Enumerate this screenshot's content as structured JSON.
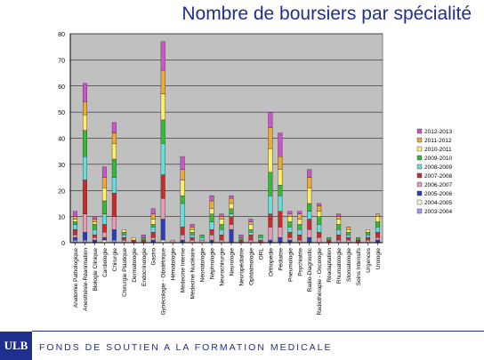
{
  "header": {
    "title": "Nombre de boursiers par spécialité"
  },
  "footer": {
    "logo": "ULB",
    "text": "FONDS DE SOUTIEN A LA FORMATION MEDICALE"
  },
  "chart_data": {
    "type": "bar",
    "stacked": true,
    "ylim": [
      0,
      80
    ],
    "yticks": [
      0,
      10,
      20,
      30,
      40,
      50,
      60,
      70,
      80
    ],
    "grid": true,
    "legend_position": "right",
    "categories": [
      "Anatomie Pathologique",
      "Anesthésie-Réanimation",
      "Biologie Clinique",
      "Cardiologie",
      "Chirurgie",
      "Chirurgie Plastique",
      "Dermatologie",
      "Endocrinologie",
      "Gastro",
      "Gynécologie - Obstétrique",
      "Hématologie",
      "Médecine Interne",
      "Médecine Nucléaire",
      "Néonatologie",
      "Néphrologie",
      "Neurochirurgie",
      "Neurologie",
      "Neuropédiatrie",
      "Ophtalmologie",
      "ORL",
      "Orthopédie",
      "Pédiatrie",
      "Pneumologie",
      "Psychiatrie",
      "Radio-Diagnostic",
      "Radiothérapie - Oncologie",
      "Réadaptation",
      "Rhumatologie",
      "Stomatologie",
      "Soins Intensifs",
      "Urgences",
      "Urologie"
    ],
    "series": [
      {
        "name": "2003-2004",
        "color": "#9999ff",
        "values": [
          1,
          1,
          0,
          0,
          1,
          0,
          0,
          0,
          0,
          0,
          0,
          0,
          0,
          0,
          0,
          0,
          0,
          0,
          0,
          0,
          0,
          0,
          0,
          0,
          0,
          0,
          0,
          0,
          0,
          0,
          0,
          0
        ]
      },
      {
        "name": "2004-2005",
        "color": "#fff2cc",
        "values": [
          0,
          0,
          0,
          1,
          0,
          0,
          0,
          0,
          0,
          1,
          0,
          0,
          0,
          0,
          0,
          0,
          0,
          0,
          0,
          0,
          0,
          0,
          0,
          0,
          0,
          0,
          0,
          0,
          0,
          0,
          0,
          0
        ]
      },
      {
        "name": "2005-2006",
        "color": "#2a3cc0",
        "values": [
          1,
          3,
          1,
          1,
          4,
          0,
          0,
          0,
          1,
          8,
          0,
          1,
          0,
          0,
          1,
          0,
          5,
          0,
          0,
          0,
          1,
          2,
          1,
          0,
          2,
          0,
          0,
          0,
          0,
          0,
          0,
          1
        ]
      },
      {
        "name": "2006-2007",
        "color": "#e79ab5",
        "values": [
          1,
          7,
          1,
          2,
          5,
          1,
          0,
          0,
          1,
          8,
          1,
          2,
          1,
          1,
          2,
          1,
          2,
          0,
          1,
          0,
          5,
          4,
          1,
          1,
          3,
          2,
          0,
          1,
          1,
          0,
          1,
          1
        ]
      },
      {
        "name": "2007-2008",
        "color": "#cc2929",
        "values": [
          2,
          13,
          1,
          3,
          9,
          1,
          1,
          1,
          2,
          9,
          0,
          3,
          1,
          0,
          2,
          2,
          3,
          1,
          2,
          1,
          5,
          6,
          2,
          2,
          4,
          2,
          1,
          2,
          1,
          1,
          1,
          2
        ]
      },
      {
        "name": "2008-2009",
        "color": "#66dddd",
        "values": [
          2,
          9,
          2,
          4,
          6,
          1,
          0,
          0,
          2,
          12,
          0,
          9,
          1,
          1,
          3,
          2,
          1,
          0,
          1,
          1,
          7,
          6,
          2,
          2,
          3,
          3,
          0,
          2,
          1,
          0,
          1,
          2
        ]
      },
      {
        "name": "2009-2010",
        "color": "#33bb33",
        "values": [
          1,
          10,
          2,
          5,
          7,
          1,
          0,
          1,
          1,
          9,
          0,
          3,
          1,
          1,
          3,
          2,
          2,
          1,
          1,
          1,
          9,
          4,
          2,
          2,
          3,
          3,
          1,
          2,
          1,
          1,
          1,
          2
        ]
      },
      {
        "name": "2010-2011",
        "color": "#ffee66",
        "values": [
          1,
          6,
          1,
          5,
          6,
          1,
          1,
          0,
          2,
          10,
          0,
          6,
          1,
          0,
          2,
          2,
          2,
          0,
          2,
          0,
          9,
          6,
          2,
          2,
          6,
          2,
          0,
          2,
          1,
          0,
          1,
          2
        ]
      },
      {
        "name": "2011-2012",
        "color": "#eeaa33",
        "values": [
          1,
          5,
          1,
          4,
          4,
          0,
          0,
          0,
          2,
          9,
          0,
          4,
          1,
          0,
          3,
          1,
          2,
          0,
          1,
          0,
          8,
          5,
          1,
          2,
          4,
          2,
          0,
          1,
          1,
          0,
          0,
          1
        ]
      },
      {
        "name": "2012-2013",
        "color": "#cc55cc",
        "values": [
          2,
          7,
          1,
          4,
          4,
          0,
          0,
          1,
          2,
          11,
          0,
          5,
          1,
          0,
          2,
          1,
          1,
          1,
          1,
          0,
          6,
          9,
          1,
          1,
          3,
          1,
          0,
          1,
          0,
          0,
          0,
          0
        ]
      }
    ]
  }
}
